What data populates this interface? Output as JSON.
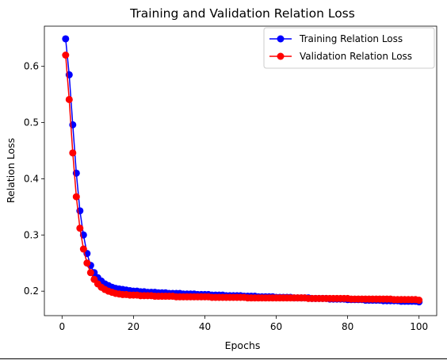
{
  "chart_data": {
    "type": "line",
    "title": "Training and Validation Relation Loss",
    "xlabel": "Epochs",
    "ylabel": "Relation Loss",
    "xlim": [
      -4.95,
      104.95
    ],
    "ylim": [
      0.1565,
      0.6715
    ],
    "xticks": [
      0,
      20,
      40,
      60,
      80,
      100
    ],
    "yticks": [
      0.2,
      0.3,
      0.4,
      0.5,
      0.6
    ],
    "ytick_labels": [
      "0.2",
      "0.3",
      "0.4",
      "0.5",
      "0.6"
    ],
    "grid": false,
    "legend_position": "top-right",
    "series": [
      {
        "name": "Training Relation Loss",
        "color": "#0000ff",
        "x": [
          1,
          2,
          3,
          4,
          5,
          6,
          7,
          8,
          9,
          10,
          11,
          12,
          13,
          14,
          15,
          16,
          17,
          18,
          19,
          20,
          21,
          22,
          23,
          24,
          25,
          26,
          27,
          28,
          29,
          30,
          31,
          32,
          33,
          34,
          35,
          36,
          37,
          38,
          39,
          40,
          41,
          42,
          43,
          44,
          45,
          46,
          47,
          48,
          49,
          50,
          51,
          52,
          53,
          54,
          55,
          56,
          57,
          58,
          59,
          60,
          61,
          62,
          63,
          64,
          65,
          66,
          67,
          68,
          69,
          70,
          71,
          72,
          73,
          74,
          75,
          76,
          77,
          78,
          79,
          80,
          81,
          82,
          83,
          84,
          85,
          86,
          87,
          88,
          89,
          90,
          91,
          92,
          93,
          94,
          95,
          96,
          97,
          98,
          99,
          100
        ],
        "y": [
          0.649,
          0.585,
          0.496,
          0.41,
          0.343,
          0.3,
          0.267,
          0.246,
          0.233,
          0.224,
          0.218,
          0.213,
          0.21,
          0.207,
          0.205,
          0.204,
          0.203,
          0.202,
          0.201,
          0.2,
          0.2,
          0.199,
          0.199,
          0.198,
          0.198,
          0.198,
          0.197,
          0.197,
          0.197,
          0.196,
          0.196,
          0.196,
          0.196,
          0.195,
          0.195,
          0.195,
          0.195,
          0.194,
          0.194,
          0.194,
          0.194,
          0.193,
          0.193,
          0.193,
          0.193,
          0.192,
          0.192,
          0.192,
          0.192,
          0.192,
          0.191,
          0.191,
          0.191,
          0.191,
          0.19,
          0.19,
          0.19,
          0.19,
          0.19,
          0.189,
          0.189,
          0.189,
          0.189,
          0.189,
          0.188,
          0.188,
          0.188,
          0.188,
          0.188,
          0.187,
          0.187,
          0.187,
          0.187,
          0.187,
          0.186,
          0.186,
          0.186,
          0.186,
          0.186,
          0.185,
          0.185,
          0.185,
          0.185,
          0.185,
          0.184,
          0.184,
          0.184,
          0.184,
          0.184,
          0.183,
          0.183,
          0.183,
          0.183,
          0.183,
          0.182,
          0.182,
          0.182,
          0.182,
          0.182,
          0.181
        ]
      },
      {
        "name": "Validation Relation Loss",
        "color": "#ff0000",
        "x": [
          1,
          2,
          3,
          4,
          5,
          6,
          7,
          8,
          9,
          10,
          11,
          12,
          13,
          14,
          15,
          16,
          17,
          18,
          19,
          20,
          21,
          22,
          23,
          24,
          25,
          26,
          27,
          28,
          29,
          30,
          31,
          32,
          33,
          34,
          35,
          36,
          37,
          38,
          39,
          40,
          41,
          42,
          43,
          44,
          45,
          46,
          47,
          48,
          49,
          50,
          51,
          52,
          53,
          54,
          55,
          56,
          57,
          58,
          59,
          60,
          61,
          62,
          63,
          64,
          65,
          66,
          67,
          68,
          69,
          70,
          71,
          72,
          73,
          74,
          75,
          76,
          77,
          78,
          79,
          80,
          81,
          82,
          83,
          84,
          85,
          86,
          87,
          88,
          89,
          90,
          91,
          92,
          93,
          94,
          95,
          96,
          97,
          98,
          99,
          100
        ],
        "y": [
          0.62,
          0.541,
          0.446,
          0.368,
          0.312,
          0.275,
          0.25,
          0.233,
          0.221,
          0.213,
          0.207,
          0.203,
          0.2,
          0.198,
          0.196,
          0.195,
          0.194,
          0.194,
          0.193,
          0.193,
          0.193,
          0.192,
          0.192,
          0.192,
          0.192,
          0.191,
          0.191,
          0.191,
          0.191,
          0.191,
          0.191,
          0.19,
          0.19,
          0.19,
          0.19,
          0.19,
          0.19,
          0.19,
          0.19,
          0.19,
          0.19,
          0.189,
          0.189,
          0.189,
          0.189,
          0.189,
          0.189,
          0.189,
          0.189,
          0.189,
          0.189,
          0.188,
          0.188,
          0.188,
          0.188,
          0.188,
          0.188,
          0.188,
          0.188,
          0.188,
          0.188,
          0.188,
          0.188,
          0.188,
          0.188,
          0.188,
          0.188,
          0.188,
          0.187,
          0.187,
          0.187,
          0.187,
          0.187,
          0.187,
          0.187,
          0.187,
          0.187,
          0.187,
          0.187,
          0.187,
          0.186,
          0.186,
          0.186,
          0.186,
          0.186,
          0.186,
          0.186,
          0.186,
          0.186,
          0.186,
          0.186,
          0.186,
          0.185,
          0.185,
          0.185,
          0.185,
          0.185,
          0.185,
          0.185,
          0.184
        ]
      }
    ]
  }
}
